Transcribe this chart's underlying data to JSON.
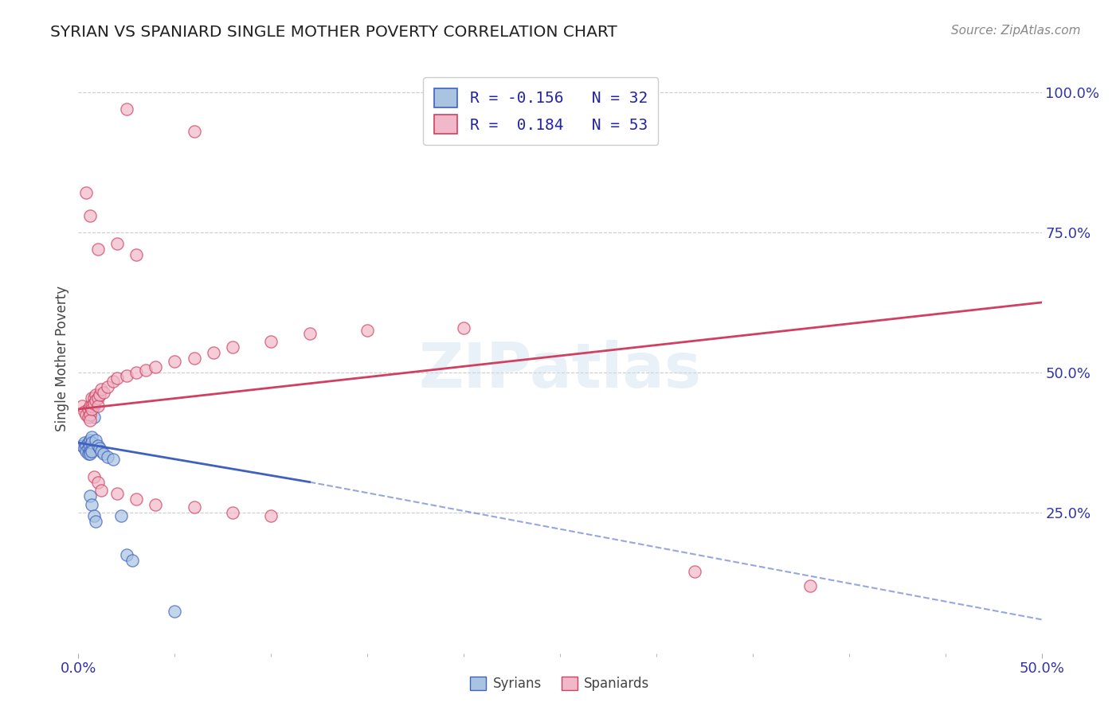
{
  "title": "SYRIAN VS SPANIARD SINGLE MOTHER POVERTY CORRELATION CHART",
  "source": "Source: ZipAtlas.com",
  "ylabel": "Single Mother Poverty",
  "watermark": "ZIPatlas",
  "blue_color": "#a8c4e0",
  "pink_color": "#f0b8c8",
  "blue_line_color": "#4060c0",
  "pink_line_color": "#d04060",
  "blue_scatter": [
    [
      0.002,
      0.37
    ],
    [
      0.003,
      0.375
    ],
    [
      0.003,
      0.365
    ],
    [
      0.004,
      0.37
    ],
    [
      0.004,
      0.36
    ],
    [
      0.005,
      0.375
    ],
    [
      0.005,
      0.365
    ],
    [
      0.005,
      0.355
    ],
    [
      0.006,
      0.38
    ],
    [
      0.006,
      0.37
    ],
    [
      0.006,
      0.36
    ],
    [
      0.006,
      0.355
    ],
    [
      0.007,
      0.385
    ],
    [
      0.007,
      0.375
    ],
    [
      0.007,
      0.36
    ],
    [
      0.008,
      0.44
    ],
    [
      0.008,
      0.42
    ],
    [
      0.009,
      0.38
    ],
    [
      0.01,
      0.37
    ],
    [
      0.011,
      0.365
    ],
    [
      0.012,
      0.36
    ],
    [
      0.013,
      0.355
    ],
    [
      0.015,
      0.35
    ],
    [
      0.018,
      0.345
    ],
    [
      0.006,
      0.28
    ],
    [
      0.007,
      0.265
    ],
    [
      0.008,
      0.245
    ],
    [
      0.009,
      0.235
    ],
    [
      0.022,
      0.245
    ],
    [
      0.025,
      0.175
    ],
    [
      0.028,
      0.165
    ],
    [
      0.05,
      0.075
    ]
  ],
  "pink_scatter": [
    [
      0.002,
      0.44
    ],
    [
      0.003,
      0.43
    ],
    [
      0.004,
      0.425
    ],
    [
      0.005,
      0.435
    ],
    [
      0.005,
      0.42
    ],
    [
      0.006,
      0.44
    ],
    [
      0.006,
      0.425
    ],
    [
      0.006,
      0.415
    ],
    [
      0.007,
      0.455
    ],
    [
      0.007,
      0.44
    ],
    [
      0.007,
      0.435
    ],
    [
      0.008,
      0.455
    ],
    [
      0.008,
      0.445
    ],
    [
      0.009,
      0.46
    ],
    [
      0.009,
      0.45
    ],
    [
      0.01,
      0.455
    ],
    [
      0.01,
      0.44
    ],
    [
      0.011,
      0.46
    ],
    [
      0.012,
      0.47
    ],
    [
      0.013,
      0.465
    ],
    [
      0.015,
      0.475
    ],
    [
      0.018,
      0.485
    ],
    [
      0.02,
      0.49
    ],
    [
      0.025,
      0.495
    ],
    [
      0.03,
      0.5
    ],
    [
      0.035,
      0.505
    ],
    [
      0.04,
      0.51
    ],
    [
      0.05,
      0.52
    ],
    [
      0.06,
      0.525
    ],
    [
      0.07,
      0.535
    ],
    [
      0.08,
      0.545
    ],
    [
      0.1,
      0.555
    ],
    [
      0.12,
      0.57
    ],
    [
      0.15,
      0.575
    ],
    [
      0.2,
      0.58
    ],
    [
      0.01,
      0.72
    ],
    [
      0.02,
      0.73
    ],
    [
      0.03,
      0.71
    ],
    [
      0.004,
      0.82
    ],
    [
      0.006,
      0.78
    ],
    [
      0.025,
      0.97
    ],
    [
      0.06,
      0.93
    ],
    [
      0.008,
      0.315
    ],
    [
      0.01,
      0.305
    ],
    [
      0.012,
      0.29
    ],
    [
      0.02,
      0.285
    ],
    [
      0.03,
      0.275
    ],
    [
      0.04,
      0.265
    ],
    [
      0.06,
      0.26
    ],
    [
      0.08,
      0.25
    ],
    [
      0.1,
      0.245
    ],
    [
      0.32,
      0.145
    ],
    [
      0.38,
      0.12
    ]
  ],
  "blue_line_x0": 0.0,
  "blue_line_x_solid_end": 0.12,
  "blue_line_x1": 0.5,
  "blue_line_y0": 0.375,
  "blue_line_y_solid_end": 0.305,
  "blue_line_y1": 0.06,
  "pink_line_x0": 0.0,
  "pink_line_x1": 0.5,
  "pink_line_y0": 0.435,
  "pink_line_y1": 0.625,
  "xmin": 0.0,
  "xmax": 0.5,
  "ymin": 0.0,
  "ymax": 1.05,
  "ytick_vals": [
    0.25,
    0.5,
    0.75,
    1.0
  ],
  "ytick_labels": [
    "25.0%",
    "50.0%",
    "75.0%",
    "100.0%"
  ],
  "xtick_vals": [
    0.0,
    0.5
  ],
  "xtick_labels": [
    "0.0%",
    "50.0%"
  ],
  "tick_color": "#3333aa",
  "grid_color": "#cccccc",
  "legend_r_blue": "R = -0.156",
  "legend_n_blue": "N = 32",
  "legend_r_pink": "R =  0.184",
  "legend_n_pink": "N = 53"
}
